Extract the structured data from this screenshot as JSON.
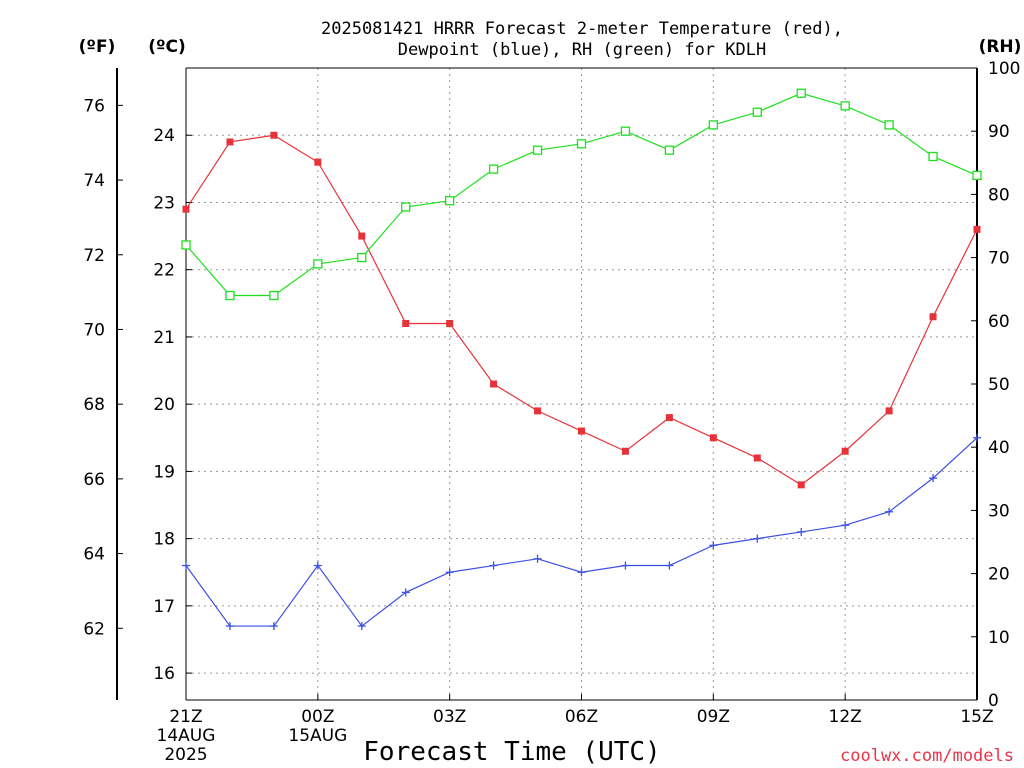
{
  "chart_data": {
    "type": "line",
    "title_line1": "2025081421 HRRR Forecast 2-meter Temperature (red),",
    "title_line2": "Dewpoint (blue), RH (green) for KDLH",
    "unit_f": "(ºF)",
    "unit_c": "(ºC)",
    "unit_rh": "(RH)",
    "xlabel": "Forecast Time (UTC)",
    "credit": "coolwx.com/models",
    "x": [
      "21Z",
      "22Z",
      "23Z",
      "00Z",
      "01Z",
      "02Z",
      "03Z",
      "04Z",
      "05Z",
      "06Z",
      "07Z",
      "08Z",
      "09Z",
      "10Z",
      "11Z",
      "12Z",
      "13Z",
      "14Z",
      "15Z"
    ],
    "x_ticks": [
      {
        "label": "21Z",
        "sub1": "14AUG",
        "sub2": "2025",
        "index": 0
      },
      {
        "label": "00Z",
        "sub1": "15AUG",
        "sub2": "",
        "index": 3
      },
      {
        "label": "03Z",
        "sub1": "",
        "sub2": "",
        "index": 6
      },
      {
        "label": "06Z",
        "sub1": "",
        "sub2": "",
        "index": 9
      },
      {
        "label": "09Z",
        "sub1": "",
        "sub2": "",
        "index": 12
      },
      {
        "label": "12Z",
        "sub1": "",
        "sub2": "",
        "index": 15
      },
      {
        "label": "15Z",
        "sub1": "",
        "sub2": "",
        "index": 18
      }
    ],
    "celsius_range": [
      15.6,
      25.0
    ],
    "celsius_ticks": [
      16,
      17,
      18,
      19,
      20,
      21,
      22,
      23,
      24
    ],
    "fahrenheit_ticks": [
      62,
      64,
      66,
      68,
      70,
      72,
      74,
      76
    ],
    "rh_range": [
      0,
      100
    ],
    "rh_ticks": [
      0,
      10,
      20,
      30,
      40,
      50,
      60,
      70,
      80,
      90,
      100
    ],
    "grid": true,
    "series": [
      {
        "name": "Temperature (red)",
        "axis": "C",
        "color": "#e8323a",
        "marker": "filled-square",
        "values": [
          22.9,
          23.9,
          24.0,
          23.6,
          22.5,
          21.2,
          21.2,
          20.3,
          19.9,
          19.6,
          19.3,
          19.8,
          19.5,
          19.2,
          18.8,
          19.3,
          19.9,
          21.3,
          22.6
        ]
      },
      {
        "name": "Dewpoint (blue)",
        "axis": "C",
        "color": "#3c50e6",
        "marker": "plus",
        "values": [
          17.6,
          16.7,
          16.7,
          17.6,
          16.7,
          17.2,
          17.5,
          17.6,
          17.7,
          17.5,
          17.6,
          17.6,
          17.9,
          18.0,
          18.1,
          18.2,
          18.4,
          18.9,
          19.5
        ]
      },
      {
        "name": "RH (green)",
        "axis": "RH",
        "color": "#1ee01e",
        "marker": "open-square",
        "values": [
          72,
          64,
          64,
          69,
          70,
          78,
          79,
          84,
          87,
          88,
          90,
          87,
          91,
          93,
          96,
          94,
          91,
          86,
          83
        ]
      }
    ]
  }
}
